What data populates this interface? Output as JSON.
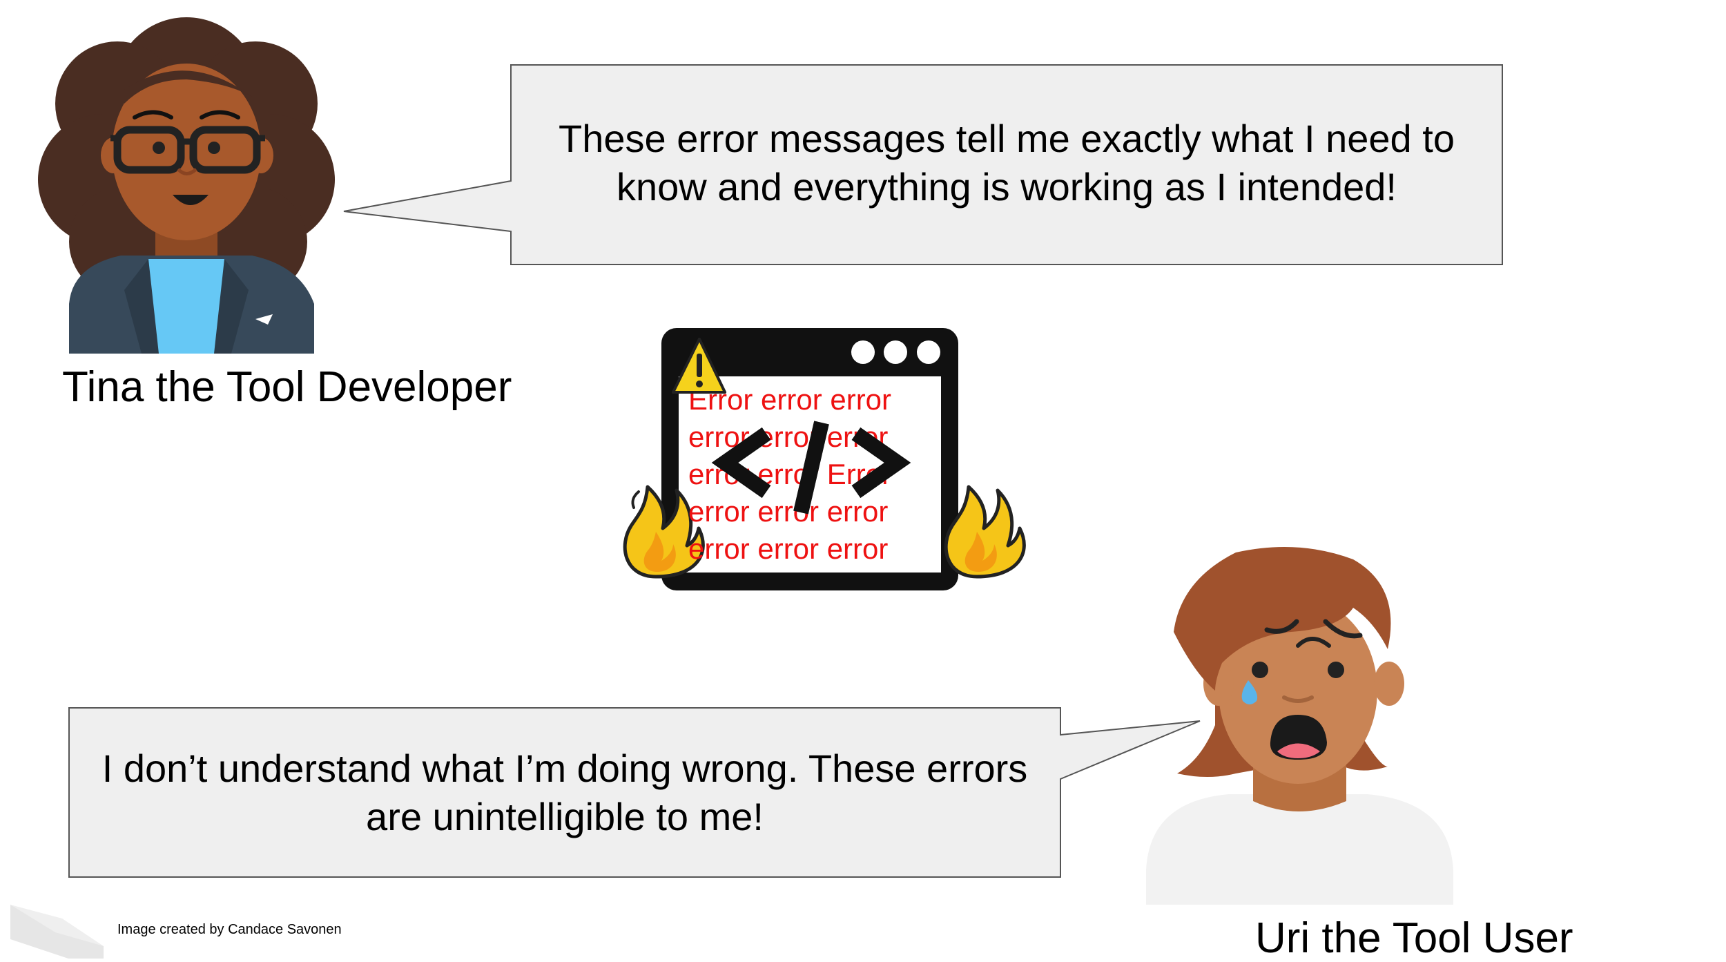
{
  "developer": {
    "name_label": "Tina the Tool Developer",
    "speech_line1": "These error messages tell me exactly what I need to",
    "speech_line2": "know and everything is working as I intended!"
  },
  "user": {
    "name_label": "Uri the Tool User",
    "speech_line1": "I don’t understand what I’m doing wrong. These errors",
    "speech_line2": "are unintelligible to me!"
  },
  "error_window": {
    "lines": [
      "Error error error",
      "error error error",
      "error error Error",
      "error error error",
      "error error error"
    ],
    "code_symbol": "</>",
    "warning_symbol": "!"
  },
  "credit": "Image created by Candace Savonen",
  "colors": {
    "bubble_fill": "#efefef",
    "error_text": "#ee1111",
    "tina_skin": "#a8592c",
    "tina_hair": "#4a2d22",
    "uri_skin": "#c98455",
    "uri_hair": "#a0522d"
  },
  "icons": [
    "warning-icon",
    "code-icon",
    "fire-icon"
  ]
}
